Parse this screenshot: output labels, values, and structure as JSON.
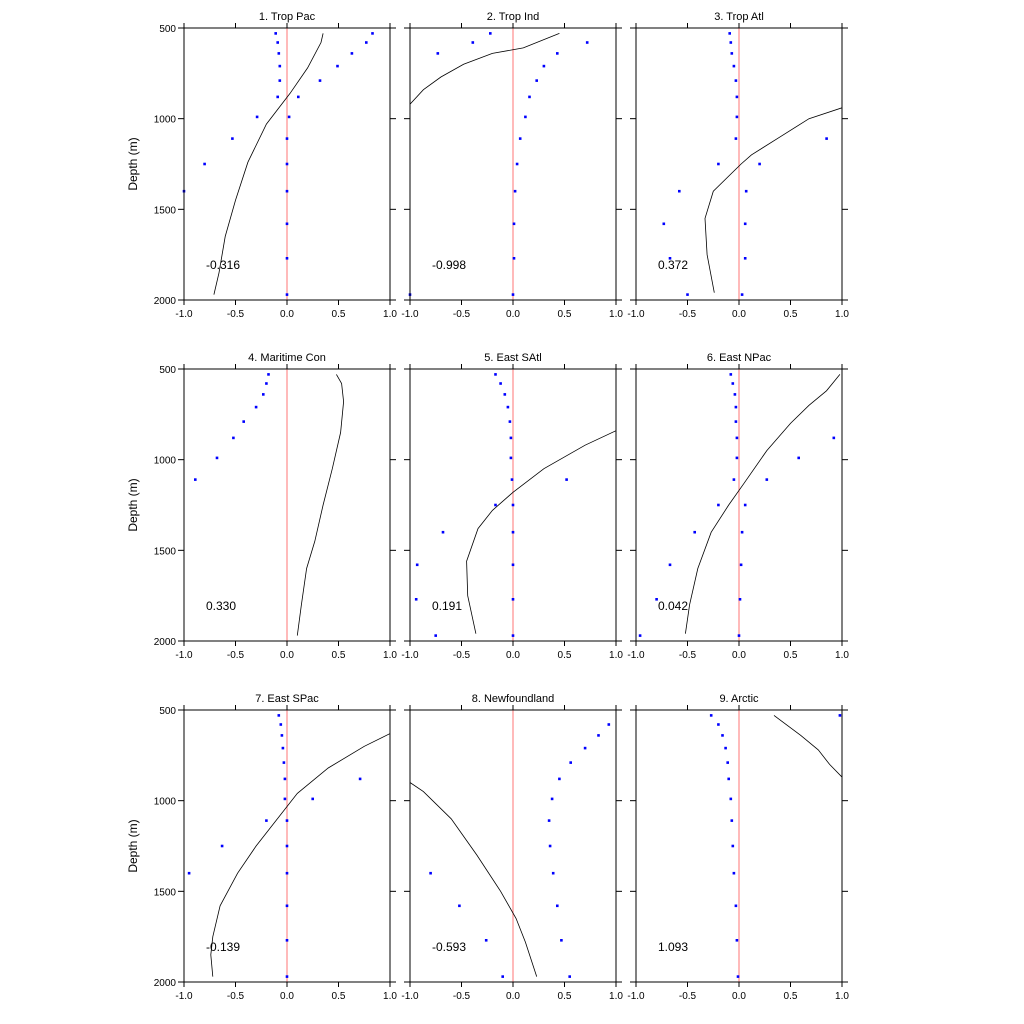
{
  "figure": {
    "y_axis_label": "Depth (m)"
  },
  "chart_data": [
    {
      "type": "scatter",
      "title": "1. Trop Pac",
      "annotation": "-0.316",
      "xlim": [
        -1.0,
        1.0
      ],
      "ylim": [
        500,
        2000
      ],
      "x_ticks": [
        "-1.0",
        "-0.5",
        "0.0",
        "0.5",
        "1.0"
      ],
      "y_ticks": [
        "500",
        "1000",
        "1500",
        "2000"
      ],
      "points": [
        {
          "x": -0.11,
          "y": 530
        },
        {
          "x": -0.09,
          "y": 580
        },
        {
          "x": -0.08,
          "y": 640
        },
        {
          "x": -0.07,
          "y": 710
        },
        {
          "x": -0.07,
          "y": 790
        },
        {
          "x": -0.09,
          "y": 880
        },
        {
          "x": 0.02,
          "y": 990
        },
        {
          "x": 0.0,
          "y": 1110
        },
        {
          "x": 0.0,
          "y": 1250
        },
        {
          "x": 0.0,
          "y": 1400
        },
        {
          "x": 0.0,
          "y": 1580
        },
        {
          "x": 0.0,
          "y": 1770
        },
        {
          "x": 0.0,
          "y": 1970
        },
        {
          "x": 0.83,
          "y": 530
        },
        {
          "x": 0.77,
          "y": 580
        },
        {
          "x": 0.63,
          "y": 640
        },
        {
          "x": 0.49,
          "y": 710
        },
        {
          "x": 0.32,
          "y": 790
        },
        {
          "x": 0.11,
          "y": 880
        },
        {
          "x": -0.29,
          "y": 990
        },
        {
          "x": -0.53,
          "y": 1110
        },
        {
          "x": -0.8,
          "y": 1250
        },
        {
          "x": -1.0,
          "y": 1400
        }
      ],
      "profile": [
        {
          "x": 0.35,
          "y": 530
        },
        {
          "x": 0.33,
          "y": 580
        },
        {
          "x": 0.2,
          "y": 720
        },
        {
          "x": 0.03,
          "y": 860
        },
        {
          "x": -0.2,
          "y": 1030
        },
        {
          "x": -0.38,
          "y": 1240
        },
        {
          "x": -0.5,
          "y": 1450
        },
        {
          "x": -0.6,
          "y": 1650
        },
        {
          "x": -0.66,
          "y": 1850
        },
        {
          "x": -0.71,
          "y": 1970
        }
      ],
      "zero_line_x": 0
    },
    {
      "type": "scatter",
      "title": "2. Trop Ind",
      "annotation": "-0.998",
      "xlim": [
        -1.0,
        1.0
      ],
      "ylim": [
        500,
        2000
      ],
      "x_ticks": [
        "-1.0",
        "-0.5",
        "0.0",
        "0.5",
        "1.0"
      ],
      "y_ticks": [
        "500",
        "1000",
        "1500",
        "2000"
      ],
      "points": [
        {
          "x": -0.22,
          "y": 530
        },
        {
          "x": -0.39,
          "y": 580
        },
        {
          "x": -0.73,
          "y": 640
        },
        {
          "x": 0.72,
          "y": 580
        },
        {
          "x": 0.43,
          "y": 640
        },
        {
          "x": 0.3,
          "y": 710
        },
        {
          "x": 0.23,
          "y": 790
        },
        {
          "x": 0.16,
          "y": 880
        },
        {
          "x": 0.12,
          "y": 990
        },
        {
          "x": 0.07,
          "y": 1110
        },
        {
          "x": 0.04,
          "y": 1250
        },
        {
          "x": 0.02,
          "y": 1400
        },
        {
          "x": 0.01,
          "y": 1580
        },
        {
          "x": 0.01,
          "y": 1770
        },
        {
          "x": 0.0,
          "y": 1970
        },
        {
          "x": -1.0,
          "y": 1970
        }
      ],
      "profile": [
        {
          "x": 0.45,
          "y": 530
        },
        {
          "x": 0.1,
          "y": 610
        },
        {
          "x": -0.2,
          "y": 640
        },
        {
          "x": -0.48,
          "y": 700
        },
        {
          "x": -0.7,
          "y": 770
        },
        {
          "x": -0.87,
          "y": 840
        },
        {
          "x": -1.0,
          "y": 920
        }
      ],
      "zero_line_x": 0
    },
    {
      "type": "scatter",
      "title": "3. Trop Atl",
      "annotation": "0.372",
      "xlim": [
        -1.0,
        1.0
      ],
      "ylim": [
        500,
        2000
      ],
      "x_ticks": [
        "-1.0",
        "-0.5",
        "0.0",
        "0.5",
        "1.0"
      ],
      "y_ticks": [
        "500",
        "1000",
        "1500",
        "2000"
      ],
      "points": [
        {
          "x": -0.09,
          "y": 530
        },
        {
          "x": -0.08,
          "y": 580
        },
        {
          "x": -0.07,
          "y": 640
        },
        {
          "x": -0.05,
          "y": 710
        },
        {
          "x": -0.03,
          "y": 790
        },
        {
          "x": -0.02,
          "y": 880
        },
        {
          "x": -0.02,
          "y": 990
        },
        {
          "x": -0.03,
          "y": 1110
        },
        {
          "x": 0.85,
          "y": 1110
        },
        {
          "x": -0.2,
          "y": 1250
        },
        {
          "x": 0.2,
          "y": 1250
        },
        {
          "x": -0.58,
          "y": 1400
        },
        {
          "x": 0.07,
          "y": 1400
        },
        {
          "x": -0.73,
          "y": 1580
        },
        {
          "x": 0.06,
          "y": 1580
        },
        {
          "x": -0.67,
          "y": 1770
        },
        {
          "x": 0.06,
          "y": 1770
        },
        {
          "x": -0.5,
          "y": 1970
        },
        {
          "x": 0.03,
          "y": 1970
        }
      ],
      "profile": [
        {
          "x": 1.0,
          "y": 940
        },
        {
          "x": 0.68,
          "y": 1000
        },
        {
          "x": 0.4,
          "y": 1100
        },
        {
          "x": 0.12,
          "y": 1200
        },
        {
          "x": 0.02,
          "y": 1250
        },
        {
          "x": -0.25,
          "y": 1400
        },
        {
          "x": -0.33,
          "y": 1550
        },
        {
          "x": -0.31,
          "y": 1750
        },
        {
          "x": -0.24,
          "y": 1960
        }
      ],
      "zero_line_x": 0
    },
    {
      "type": "scatter",
      "title": "4. Maritime Con",
      "annotation": "0.330",
      "xlim": [
        -1.0,
        1.0
      ],
      "ylim": [
        500,
        2000
      ],
      "x_ticks": [
        "-1.0",
        "-0.5",
        "0.0",
        "0.5",
        "1.0"
      ],
      "y_ticks": [
        "500",
        "1000",
        "1500",
        "2000"
      ],
      "points": [
        {
          "x": -0.18,
          "y": 530
        },
        {
          "x": -0.2,
          "y": 580
        },
        {
          "x": -0.23,
          "y": 640
        },
        {
          "x": -0.3,
          "y": 710
        },
        {
          "x": -0.42,
          "y": 790
        },
        {
          "x": -0.52,
          "y": 880
        },
        {
          "x": -0.68,
          "y": 990
        },
        {
          "x": -0.89,
          "y": 1110
        }
      ],
      "profile": [
        {
          "x": 0.48,
          "y": 530
        },
        {
          "x": 0.53,
          "y": 580
        },
        {
          "x": 0.55,
          "y": 680
        },
        {
          "x": 0.52,
          "y": 850
        },
        {
          "x": 0.44,
          "y": 1050
        },
        {
          "x": 0.35,
          "y": 1250
        },
        {
          "x": 0.27,
          "y": 1450
        },
        {
          "x": 0.19,
          "y": 1600
        },
        {
          "x": 0.14,
          "y": 1800
        },
        {
          "x": 0.1,
          "y": 1970
        }
      ],
      "zero_line_x": 0
    },
    {
      "type": "scatter",
      "title": "5. East SAtl",
      "annotation": "0.191",
      "xlim": [
        -1.0,
        1.0
      ],
      "ylim": [
        500,
        2000
      ],
      "x_ticks": [
        "-1.0",
        "-0.5",
        "0.0",
        "0.5",
        "1.0"
      ],
      "y_ticks": [
        "500",
        "1000",
        "1500",
        "2000"
      ],
      "points": [
        {
          "x": -0.17,
          "y": 530
        },
        {
          "x": -0.12,
          "y": 580
        },
        {
          "x": -0.08,
          "y": 640
        },
        {
          "x": -0.05,
          "y": 710
        },
        {
          "x": -0.03,
          "y": 790
        },
        {
          "x": -0.02,
          "y": 880
        },
        {
          "x": -0.02,
          "y": 990
        },
        {
          "x": -0.01,
          "y": 1110
        },
        {
          "x": 0.52,
          "y": 1110
        },
        {
          "x": -0.17,
          "y": 1250
        },
        {
          "x": 0.0,
          "y": 1250
        },
        {
          "x": -0.68,
          "y": 1400
        },
        {
          "x": 0.0,
          "y": 1400
        },
        {
          "x": -0.93,
          "y": 1580
        },
        {
          "x": 0.0,
          "y": 1580
        },
        {
          "x": -0.94,
          "y": 1770
        },
        {
          "x": 0.0,
          "y": 1770
        },
        {
          "x": -0.75,
          "y": 1970
        },
        {
          "x": 0.0,
          "y": 1970
        }
      ],
      "profile": [
        {
          "x": 1.0,
          "y": 840
        },
        {
          "x": 0.7,
          "y": 920
        },
        {
          "x": 0.3,
          "y": 1050
        },
        {
          "x": 0.0,
          "y": 1180
        },
        {
          "x": -0.2,
          "y": 1280
        },
        {
          "x": -0.34,
          "y": 1380
        },
        {
          "x": -0.45,
          "y": 1560
        },
        {
          "x": -0.44,
          "y": 1750
        },
        {
          "x": -0.36,
          "y": 1960
        }
      ],
      "zero_line_x": 0
    },
    {
      "type": "scatter",
      "title": "6. East NPac",
      "annotation": "0.042",
      "xlim": [
        -1.0,
        1.0
      ],
      "ylim": [
        500,
        2000
      ],
      "x_ticks": [
        "-1.0",
        "-0.5",
        "0.0",
        "0.5",
        "1.0"
      ],
      "y_ticks": [
        "500",
        "1000",
        "1500",
        "2000"
      ],
      "points": [
        {
          "x": -0.08,
          "y": 530
        },
        {
          "x": -0.06,
          "y": 580
        },
        {
          "x": -0.04,
          "y": 640
        },
        {
          "x": -0.03,
          "y": 710
        },
        {
          "x": -0.03,
          "y": 790
        },
        {
          "x": -0.02,
          "y": 880
        },
        {
          "x": 0.92,
          "y": 880
        },
        {
          "x": -0.02,
          "y": 990
        },
        {
          "x": 0.58,
          "y": 990
        },
        {
          "x": -0.05,
          "y": 1110
        },
        {
          "x": 0.27,
          "y": 1110
        },
        {
          "x": -0.2,
          "y": 1250
        },
        {
          "x": 0.06,
          "y": 1250
        },
        {
          "x": -0.43,
          "y": 1400
        },
        {
          "x": 0.03,
          "y": 1400
        },
        {
          "x": -0.67,
          "y": 1580
        },
        {
          "x": 0.02,
          "y": 1580
        },
        {
          "x": -0.8,
          "y": 1770
        },
        {
          "x": 0.01,
          "y": 1770
        },
        {
          "x": -0.96,
          "y": 1970
        },
        {
          "x": 0.0,
          "y": 1970
        }
      ],
      "profile": [
        {
          "x": 0.98,
          "y": 530
        },
        {
          "x": 0.85,
          "y": 620
        },
        {
          "x": 0.68,
          "y": 700
        },
        {
          "x": 0.5,
          "y": 800
        },
        {
          "x": 0.27,
          "y": 950
        },
        {
          "x": 0.05,
          "y": 1130
        },
        {
          "x": -0.1,
          "y": 1250
        },
        {
          "x": -0.27,
          "y": 1400
        },
        {
          "x": -0.4,
          "y": 1600
        },
        {
          "x": -0.48,
          "y": 1800
        },
        {
          "x": -0.52,
          "y": 1960
        }
      ],
      "zero_line_x": 0
    },
    {
      "type": "scatter",
      "title": "7. East SPac",
      "annotation": "-0.139",
      "xlim": [
        -1.0,
        1.0
      ],
      "ylim": [
        500,
        2000
      ],
      "x_ticks": [
        "-1.0",
        "-0.5",
        "0.0",
        "0.5",
        "1.0"
      ],
      "y_ticks": [
        "500",
        "1000",
        "1500",
        "2000"
      ],
      "points": [
        {
          "x": -0.08,
          "y": 530
        },
        {
          "x": -0.06,
          "y": 580
        },
        {
          "x": -0.05,
          "y": 640
        },
        {
          "x": -0.04,
          "y": 710
        },
        {
          "x": -0.03,
          "y": 790
        },
        {
          "x": -0.02,
          "y": 880
        },
        {
          "x": 0.71,
          "y": 880
        },
        {
          "x": -0.02,
          "y": 990
        },
        {
          "x": 0.25,
          "y": 990
        },
        {
          "x": -0.2,
          "y": 1110
        },
        {
          "x": 0.0,
          "y": 1110
        },
        {
          "x": -0.63,
          "y": 1250
        },
        {
          "x": 0.0,
          "y": 1250
        },
        {
          "x": -0.95,
          "y": 1400
        },
        {
          "x": 0.0,
          "y": 1400
        },
        {
          "x": 0.0,
          "y": 1580
        },
        {
          "x": 0.0,
          "y": 1770
        },
        {
          "x": 0.0,
          "y": 1970
        }
      ],
      "profile": [
        {
          "x": 1.0,
          "y": 630
        },
        {
          "x": 0.75,
          "y": 700
        },
        {
          "x": 0.4,
          "y": 820
        },
        {
          "x": 0.1,
          "y": 960
        },
        {
          "x": -0.3,
          "y": 1250
        },
        {
          "x": -0.48,
          "y": 1400
        },
        {
          "x": -0.65,
          "y": 1580
        },
        {
          "x": -0.72,
          "y": 1750
        },
        {
          "x": -0.74,
          "y": 1850
        },
        {
          "x": -0.72,
          "y": 1970
        }
      ],
      "zero_line_x": 0
    },
    {
      "type": "scatter",
      "title": "8. Newfoundland",
      "annotation": "-0.593",
      "xlim": [
        -1.0,
        1.0
      ],
      "ylim": [
        500,
        2000
      ],
      "x_ticks": [
        "-1.0",
        "-0.5",
        "0.0",
        "0.5",
        "1.0"
      ],
      "y_ticks": [
        "500",
        "1000",
        "1500",
        "2000"
      ],
      "points": [
        {
          "x": 0.93,
          "y": 580
        },
        {
          "x": 0.83,
          "y": 640
        },
        {
          "x": 0.7,
          "y": 710
        },
        {
          "x": 0.56,
          "y": 790
        },
        {
          "x": 0.45,
          "y": 880
        },
        {
          "x": 0.38,
          "y": 990
        },
        {
          "x": 0.35,
          "y": 1110
        },
        {
          "x": 0.36,
          "y": 1250
        },
        {
          "x": -0.8,
          "y": 1400
        },
        {
          "x": 0.39,
          "y": 1400
        },
        {
          "x": -0.52,
          "y": 1580
        },
        {
          "x": 0.43,
          "y": 1580
        },
        {
          "x": -0.26,
          "y": 1770
        },
        {
          "x": 0.47,
          "y": 1770
        },
        {
          "x": -0.1,
          "y": 1970
        },
        {
          "x": 0.55,
          "y": 1970
        }
      ],
      "profile": [
        {
          "x": -1.0,
          "y": 900
        },
        {
          "x": -0.87,
          "y": 950
        },
        {
          "x": -0.6,
          "y": 1100
        },
        {
          "x": -0.35,
          "y": 1300
        },
        {
          "x": -0.12,
          "y": 1500
        },
        {
          "x": 0.03,
          "y": 1650
        },
        {
          "x": 0.12,
          "y": 1780
        },
        {
          "x": 0.23,
          "y": 1970
        }
      ],
      "zero_line_x": 0
    },
    {
      "type": "scatter",
      "title": "9. Arctic",
      "annotation": "1.093",
      "xlim": [
        -1.0,
        1.0
      ],
      "ylim": [
        500,
        2000
      ],
      "x_ticks": [
        "-1.0",
        "-0.5",
        "0.0",
        "0.5",
        "1.0"
      ],
      "y_ticks": [
        "500",
        "1000",
        "1500",
        "2000"
      ],
      "points": [
        {
          "x": -0.27,
          "y": 530
        },
        {
          "x": -0.2,
          "y": 580
        },
        {
          "x": -0.16,
          "y": 640
        },
        {
          "x": -0.13,
          "y": 710
        },
        {
          "x": -0.11,
          "y": 790
        },
        {
          "x": -0.1,
          "y": 880
        },
        {
          "x": -0.08,
          "y": 990
        },
        {
          "x": -0.07,
          "y": 1110
        },
        {
          "x": -0.06,
          "y": 1250
        },
        {
          "x": -0.05,
          "y": 1400
        },
        {
          "x": -0.03,
          "y": 1580
        },
        {
          "x": -0.02,
          "y": 1770
        },
        {
          "x": -0.01,
          "y": 1970
        },
        {
          "x": 0.98,
          "y": 530
        }
      ],
      "profile": [
        {
          "x": 0.34,
          "y": 530
        },
        {
          "x": 0.6,
          "y": 640
        },
        {
          "x": 0.77,
          "y": 720
        },
        {
          "x": 0.88,
          "y": 800
        },
        {
          "x": 1.0,
          "y": 870
        }
      ],
      "zero_line_x": 0
    }
  ]
}
